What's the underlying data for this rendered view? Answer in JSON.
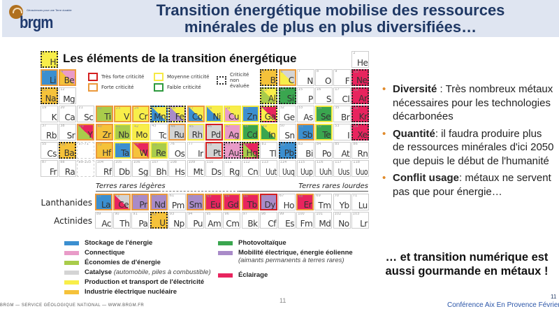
{
  "header": {
    "title": "Transition énergétique mobilise des ressources minérales de plus en plus diversifiées…",
    "logo_text": "brgm",
    "logo_tagline": "Géosciences pour une Terre durable"
  },
  "table": {
    "title": "Les éléments de la transition énergétique",
    "criticality_keys": [
      {
        "label": "Très forte criticité",
        "style": "very"
      },
      {
        "label": "Forte criticité",
        "style": "high"
      },
      {
        "label": "Moyenne criticité",
        "style": "mid"
      },
      {
        "label": "Faible criticité",
        "style": "low"
      },
      {
        "label": "Criticité non évaluée",
        "style": "na"
      }
    ],
    "lanthanides_label": "Lanthanides",
    "actinides_label": "Actinides",
    "light_rare_earths": "Terres rares légères",
    "heavy_rare_earths": "Terres rares lourdes",
    "colors": {
      "storage": "#3b8fd0",
      "connect": "#e99bc8",
      "savings": "#a9cc4b",
      "catalysis": "#d4d4d4",
      "power": "#f8ee4a",
      "nuclear": "#f5c23a",
      "pv": "#3aa64f",
      "mobility": "#a98bc8",
      "lighting": "#e8245e"
    },
    "elements": [
      [
        "H",
        1,
        1,
        1,
        "power",
        null,
        "na"
      ],
      [
        "He",
        2,
        1,
        18,
        null,
        null,
        null
      ],
      [
        "Li",
        3,
        2,
        1,
        "storage",
        null,
        "high"
      ],
      [
        "Be",
        4,
        2,
        2,
        "nuclear",
        "connect",
        "high"
      ],
      [
        "B",
        5,
        2,
        13,
        "nuclear",
        null,
        "na"
      ],
      [
        "C",
        6,
        2,
        14,
        "power",
        "catalysis",
        "high"
      ],
      [
        "N",
        7,
        2,
        15,
        null,
        null,
        null
      ],
      [
        "O",
        8,
        2,
        16,
        null,
        null,
        null
      ],
      [
        "F",
        9,
        2,
        17,
        null,
        null,
        null
      ],
      [
        "Ne",
        10,
        2,
        18,
        "lighting",
        null,
        "na"
      ],
      [
        "Na",
        11,
        3,
        1,
        "nuclear",
        null,
        "na"
      ],
      [
        "Mg",
        12,
        3,
        2,
        null,
        null,
        null
      ],
      [
        "Al",
        13,
        3,
        13,
        "savings",
        "power",
        "na"
      ],
      [
        "Si",
        14,
        3,
        14,
        "pv",
        null,
        "na"
      ],
      [
        "P",
        15,
        3,
        15,
        null,
        null,
        null
      ],
      [
        "S",
        16,
        3,
        16,
        null,
        null,
        null
      ],
      [
        "Cl",
        17,
        3,
        17,
        null,
        null,
        null
      ],
      [
        "Ar",
        18,
        3,
        18,
        "lighting",
        null,
        "na"
      ],
      [
        "K",
        19,
        4,
        1,
        null,
        null,
        null
      ],
      [
        "Ca",
        20,
        4,
        2,
        null,
        null,
        null
      ],
      [
        "Sc",
        21,
        4,
        3,
        null,
        null,
        null
      ],
      [
        "Ti",
        22,
        4,
        4,
        "savings",
        null,
        "high"
      ],
      [
        "V",
        23,
        4,
        5,
        "power",
        null,
        "high"
      ],
      [
        "Cr",
        24,
        4,
        6,
        "power",
        null,
        "high"
      ],
      [
        "Mn",
        25,
        4,
        7,
        "storage",
        "power",
        "na"
      ],
      [
        "Fe",
        26,
        4,
        8,
        "mobility",
        "power",
        "na"
      ],
      [
        "Co",
        27,
        4,
        9,
        "storage",
        "power",
        "high"
      ],
      [
        "Ni",
        28,
        4,
        10,
        "storage",
        "power",
        "mid"
      ],
      [
        "Cu",
        29,
        4,
        11,
        "connect",
        "power",
        "mid"
      ],
      [
        "Zn",
        30,
        4,
        12,
        "storage",
        null,
        "mid"
      ],
      [
        "Ga",
        31,
        4,
        13,
        "power",
        "lighting",
        "na"
      ],
      [
        "Ge",
        32,
        4,
        14,
        null,
        null,
        null
      ],
      [
        "As",
        33,
        4,
        15,
        null,
        null,
        null
      ],
      [
        "Se",
        34,
        4,
        16,
        "pv",
        null,
        "mid"
      ],
      [
        "Br",
        35,
        4,
        17,
        null,
        null,
        null
      ],
      [
        "Kr",
        36,
        4,
        18,
        "lighting",
        null,
        "na"
      ],
      [
        "Rb",
        37,
        5,
        1,
        null,
        null,
        null
      ],
      [
        "Sr",
        38,
        5,
        2,
        null,
        null,
        null
      ],
      [
        "Y",
        39,
        5,
        3,
        "savings",
        "lighting",
        "high"
      ],
      [
        "Zr",
        40,
        5,
        4,
        "nuclear",
        null,
        "high"
      ],
      [
        "Nb",
        41,
        5,
        5,
        "savings",
        null,
        "mid"
      ],
      [
        "Mo",
        42,
        5,
        6,
        "power",
        null,
        "mid"
      ],
      [
        "Tc",
        43,
        5,
        7,
        null,
        null,
        null
      ],
      [
        "Ru",
        44,
        5,
        8,
        "catalysis",
        null,
        "high"
      ],
      [
        "Rh",
        45,
        5,
        9,
        "catalysis",
        null,
        "mid"
      ],
      [
        "Pd",
        46,
        5,
        10,
        "catalysis",
        null,
        "very"
      ],
      [
        "Ag",
        47,
        5,
        11,
        "connect",
        null,
        "mid"
      ],
      [
        "Cd",
        48,
        5,
        12,
        "pv",
        null,
        "mid"
      ],
      [
        "In",
        49,
        5,
        13,
        "pv",
        "power",
        "mid"
      ],
      [
        "Sn",
        50,
        5,
        14,
        null,
        null,
        null
      ],
      [
        "Sb",
        51,
        5,
        15,
        "storage",
        null,
        "high"
      ],
      [
        "Te",
        52,
        5,
        16,
        "pv",
        null,
        "mid"
      ],
      [
        "I",
        53,
        5,
        17,
        null,
        null,
        null
      ],
      [
        "Xe",
        54,
        5,
        18,
        "lighting",
        null,
        "na"
      ],
      [
        "Cs",
        55,
        6,
        1,
        null,
        null,
        null
      ],
      [
        "Ba",
        56,
        6,
        2,
        "nuclear",
        null,
        "na"
      ],
      [
        "",
        "57-71",
        6,
        3,
        null,
        null,
        "ph"
      ],
      [
        "Hf",
        72,
        6,
        4,
        "nuclear",
        null,
        "high"
      ],
      [
        "Ta",
        73,
        6,
        5,
        "storage",
        null,
        "mid"
      ],
      [
        "W",
        74,
        6,
        6,
        "nuclear",
        "lighting",
        "high"
      ],
      [
        "Re",
        75,
        6,
        7,
        "savings",
        null,
        "mid"
      ],
      [
        "Os",
        76,
        6,
        8,
        null,
        null,
        null
      ],
      [
        "Ir",
        77,
        6,
        9,
        null,
        null,
        null
      ],
      [
        "Pt",
        78,
        6,
        10,
        "catalysis",
        null,
        "very"
      ],
      [
        "Au",
        79,
        6,
        11,
        "connect",
        null,
        "na"
      ],
      [
        "Hg",
        80,
        6,
        12,
        "savings",
        "lighting",
        "na"
      ],
      [
        "Tl",
        81,
        6,
        13,
        null,
        null,
        null
      ],
      [
        "Pb",
        82,
        6,
        14,
        "storage",
        null,
        "na"
      ],
      [
        "Bi",
        83,
        6,
        15,
        null,
        null,
        null
      ],
      [
        "Po",
        84,
        6,
        16,
        null,
        null,
        null
      ],
      [
        "At",
        85,
        6,
        17,
        null,
        null,
        null
      ],
      [
        "Rn",
        86,
        6,
        18,
        null,
        null,
        null
      ],
      [
        "Fr",
        87,
        7,
        1,
        null,
        null,
        null
      ],
      [
        "Ra",
        88,
        7,
        2,
        null,
        null,
        null
      ],
      [
        "",
        "89-103",
        7,
        3,
        null,
        null,
        "ph"
      ],
      [
        "Rf",
        104,
        7,
        4,
        null,
        null,
        null
      ],
      [
        "Db",
        105,
        7,
        5,
        null,
        null,
        null
      ],
      [
        "Sg",
        106,
        7,
        6,
        null,
        null,
        null
      ],
      [
        "Bh",
        107,
        7,
        7,
        null,
        null,
        null
      ],
      [
        "Hs",
        108,
        7,
        8,
        null,
        null,
        null
      ],
      [
        "Mt",
        109,
        7,
        9,
        null,
        null,
        null
      ],
      [
        "Ds",
        110,
        7,
        10,
        null,
        null,
        null
      ],
      [
        "Rg",
        111,
        7,
        11,
        null,
        null,
        null
      ],
      [
        "Cn",
        112,
        7,
        12,
        null,
        null,
        null
      ],
      [
        "Uut",
        113,
        7,
        13,
        null,
        null,
        null
      ],
      [
        "Uuq",
        114,
        7,
        14,
        null,
        null,
        null
      ],
      [
        "Uup",
        115,
        7,
        15,
        null,
        null,
        null
      ],
      [
        "Uuh",
        116,
        7,
        16,
        null,
        null,
        null
      ],
      [
        "Uus",
        117,
        7,
        17,
        null,
        null,
        null
      ],
      [
        "Uuo",
        118,
        7,
        18,
        null,
        null,
        null
      ],
      [
        "La",
        57,
        "L",
        1,
        "storage",
        null,
        "high"
      ],
      [
        "Ce",
        58,
        "L",
        2,
        "lighting",
        "catalysis",
        "high"
      ],
      [
        "Pr",
        59,
        "L",
        3,
        "mobility",
        null,
        "high"
      ],
      [
        "Nd",
        60,
        "L",
        4,
        "mobility",
        null,
        "high"
      ],
      [
        "Pm",
        61,
        "L",
        5,
        null,
        null,
        null
      ],
      [
        "Sm",
        62,
        "L",
        6,
        "mobility",
        null,
        "high"
      ],
      [
        "Eu",
        63,
        "L",
        7,
        "lighting",
        null,
        "high"
      ],
      [
        "Gd",
        64,
        "L",
        8,
        "lighting",
        null,
        "high"
      ],
      [
        "Tb",
        65,
        "L",
        9,
        "lighting",
        null,
        "high"
      ],
      [
        "Dy",
        66,
        "L",
        10,
        "mobility",
        null,
        "very"
      ],
      [
        "Ho",
        67,
        "L",
        11,
        null,
        null,
        null
      ],
      [
        "Er",
        68,
        "L",
        12,
        "lighting",
        null,
        "high"
      ],
      [
        "Tm",
        69,
        "L",
        13,
        null,
        null,
        null
      ],
      [
        "Yb",
        70,
        "L",
        14,
        null,
        null,
        null
      ],
      [
        "Lu",
        71,
        "L",
        15,
        null,
        null,
        null
      ],
      [
        "Ac",
        89,
        "A",
        1,
        null,
        null,
        null
      ],
      [
        "Th",
        90,
        "A",
        2,
        null,
        null,
        null
      ],
      [
        "Pa",
        91,
        "A",
        3,
        null,
        null,
        null
      ],
      [
        "U",
        92,
        "A",
        4,
        "nuclear",
        null,
        "na"
      ],
      [
        "Np",
        93,
        "A",
        5,
        null,
        null,
        null
      ],
      [
        "Pu",
        94,
        "A",
        6,
        null,
        null,
        null
      ],
      [
        "Am",
        95,
        "A",
        7,
        null,
        null,
        null
      ],
      [
        "Cm",
        96,
        "A",
        8,
        null,
        null,
        null
      ],
      [
        "Bk",
        97,
        "A",
        9,
        null,
        null,
        null
      ],
      [
        "Cf",
        98,
        "A",
        10,
        null,
        null,
        null
      ],
      [
        "Es",
        99,
        "A",
        11,
        null,
        null,
        null
      ],
      [
        "Fm",
        100,
        "A",
        12,
        null,
        null,
        null
      ],
      [
        "Md",
        101,
        "A",
        13,
        null,
        null,
        null
      ],
      [
        "No",
        102,
        "A",
        14,
        null,
        null,
        null
      ],
      [
        "Lr",
        103,
        "A",
        15,
        null,
        null,
        null
      ]
    ]
  },
  "legend": [
    {
      "key": "storage",
      "label": "Stockage de l'énergie"
    },
    {
      "key": "connect",
      "label": "Connectique"
    },
    {
      "key": "savings",
      "label": "Économies de d'énergie"
    },
    {
      "key": "catalysis",
      "label": "Catalyse",
      "note": "(automobile, piles à combustible)"
    },
    {
      "key": "power",
      "label": "Production et transport de l'électricité"
    },
    {
      "key": "nuclear",
      "label": "Industrie électrique nucléaire"
    },
    {
      "key": "pv",
      "label": "Photovoltaïque"
    },
    {
      "key": "mobility",
      "label": "Mobilité électrique, énergie éolienne",
      "note": "(aimants permanents à terres rares)"
    },
    {
      "key": "lighting",
      "label": "Éclairage"
    }
  ],
  "bullets": [
    {
      "bold": "Diversité",
      "text": " : Très nombreux métaux nécessaires pour les technologies décarbonées"
    },
    {
      "bold": "Quantité",
      "text": ": il faudra produire plus de ressources minérales d'ici 2050 que depuis le début de l'humanité"
    },
    {
      "bold": "Conflit usage",
      "text": ": métaux ne servent pas que pour énergie…"
    }
  ],
  "closing": "… et transition numérique est aussi gourmande en métaux !",
  "footer": {
    "left": "BRGM — SERVICE GÉOLOGIQUE NATIONAL — WWW.BRGM.FR",
    "page": "11",
    "page_right": "11",
    "conference": "Conférence Aix En Provence Février 2022"
  }
}
